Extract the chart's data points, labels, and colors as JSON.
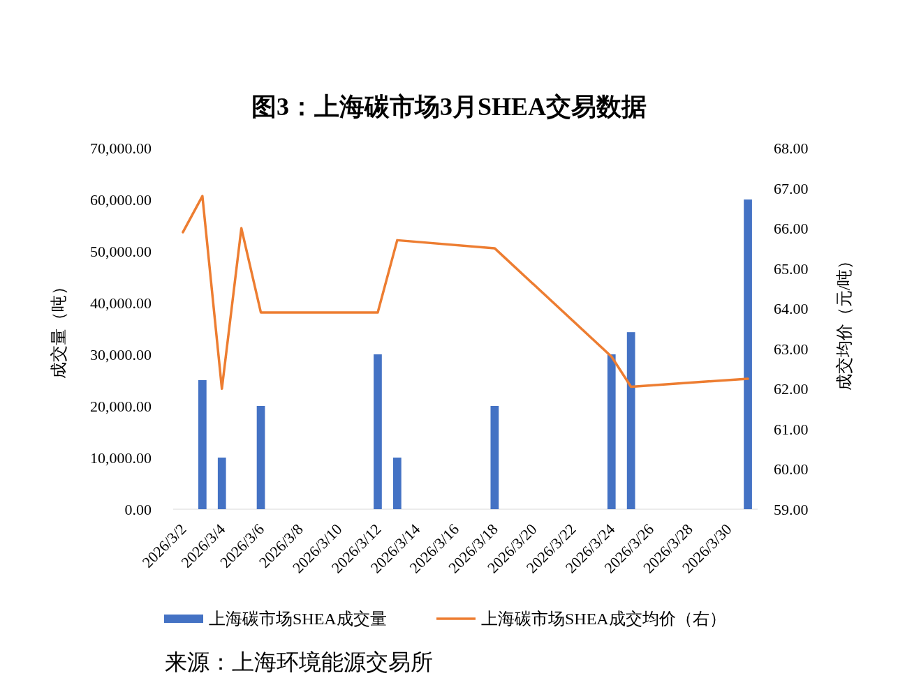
{
  "chart_data": {
    "type": "bar",
    "title": "图3：上海碳市场3月SHEA交易数据",
    "ylabel": "成交量（吨）",
    "y2label": "成交均价（元/吨）",
    "annotations": [
      "来源：上海环境能源交易所"
    ],
    "xlim": [
      "2026-03-01T12:00",
      "2026-03-31T12:00"
    ],
    "xticks": [
      {
        "value": "2026-03-02",
        "label": "2026/3/2"
      },
      {
        "value": "2026-03-04",
        "label": "2026/3/4"
      },
      {
        "value": "2026-03-06",
        "label": "2026/3/6"
      },
      {
        "value": "2026-03-08",
        "label": "2026/3/8"
      },
      {
        "value": "2026-03-10",
        "label": "2026/3/10"
      },
      {
        "value": "2026-03-12",
        "label": "2026/3/12"
      },
      {
        "value": "2026-03-14",
        "label": "2026/3/14"
      },
      {
        "value": "2026-03-16",
        "label": "2026/3/16"
      },
      {
        "value": "2026-03-18",
        "label": "2026/3/18"
      },
      {
        "value": "2026-03-20",
        "label": "2026/3/20"
      },
      {
        "value": "2026-03-22",
        "label": "2026/3/22"
      },
      {
        "value": "2026-03-24",
        "label": "2026/3/24"
      },
      {
        "value": "2026-03-26",
        "label": "2026/3/26"
      },
      {
        "value": "2026-03-28",
        "label": "2026/3/28"
      },
      {
        "value": "2026-03-30",
        "label": "2026/3/30"
      }
    ],
    "ylim": [
      0,
      70000
    ],
    "yticks": [
      {
        "value": 0,
        "label": "0.00"
      },
      {
        "value": 10000,
        "label": "10,000.00"
      },
      {
        "value": 20000,
        "label": "20,000.00"
      },
      {
        "value": 30000,
        "label": "30,000.00"
      },
      {
        "value": 40000,
        "label": "40,000.00"
      },
      {
        "value": 50000,
        "label": "50,000.00"
      },
      {
        "value": 60000,
        "label": "60,000.00"
      },
      {
        "value": 70000,
        "label": "70,000.00"
      }
    ],
    "y2lim": [
      59,
      68
    ],
    "y2ticks": [
      {
        "value": 59,
        "label": "59.00"
      },
      {
        "value": 60,
        "label": "60.00"
      },
      {
        "value": 61,
        "label": "61.00"
      },
      {
        "value": 62,
        "label": "62.00"
      },
      {
        "value": 63,
        "label": "63.00"
      },
      {
        "value": 64,
        "label": "64.00"
      },
      {
        "value": 65,
        "label": "65.00"
      },
      {
        "value": 66,
        "label": "66.00"
      },
      {
        "value": 67,
        "label": "67.00"
      },
      {
        "value": 68,
        "label": "68.00"
      }
    ],
    "grid": false,
    "legend": "bottom",
    "series": [
      {
        "name": "上海碳市场SHEA成交量",
        "color": "#4472c4",
        "x": [
          "2026-03-03",
          "2026-03-04",
          "2026-03-06",
          "2026-03-12",
          "2026-03-13",
          "2026-03-18",
          "2026-03-24",
          "2026-03-25",
          "2026-03-31"
        ],
        "values": [
          25000,
          10000,
          20000,
          30000,
          10000,
          20000,
          30000,
          34300,
          60000
        ]
      },
      {
        "name": "上海碳市场SHEA成交均价（右）",
        "type": "line",
        "axis": "y2",
        "color": "#ed7d31",
        "x": [
          "2026-03-02",
          "2026-03-03",
          "2026-03-04",
          "2026-03-05",
          "2026-03-06",
          "2026-03-12",
          "2026-03-13",
          "2026-03-18",
          "2026-03-24",
          "2026-03-25",
          "2026-03-31"
        ],
        "values": [
          65.9,
          66.8,
          62.0,
          66.0,
          63.9,
          63.9,
          65.7,
          65.5,
          62.8,
          62.05,
          62.25
        ]
      }
    ]
  }
}
